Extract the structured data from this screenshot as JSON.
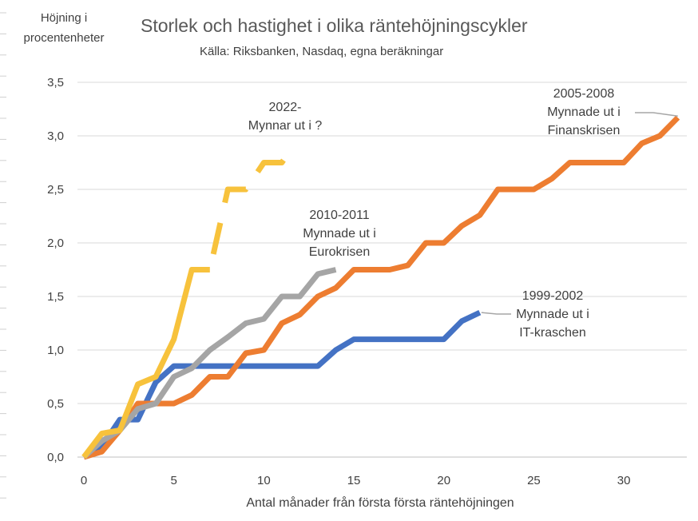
{
  "chart_data": {
    "type": "line",
    "title": "Storlek och hastighet i olika räntehöjningscykler",
    "subtitle": "Källa: Riksbanken, Nasdaq, egna beräkningar",
    "ylabel": [
      "Höjning i",
      "procentenheter"
    ],
    "xlabel": "Antal månader från första första räntehöjningen",
    "xlim": [
      0,
      33.5
    ],
    "ylim": [
      0,
      3.5
    ],
    "xticks": [
      0,
      5,
      10,
      15,
      20,
      25,
      30
    ],
    "xtick_labels": [
      "0",
      "5",
      "10",
      "15",
      "20",
      "25",
      "30"
    ],
    "yticks": [
      0,
      0.5,
      1,
      1.5,
      2,
      2.5,
      3,
      3.5
    ],
    "ytick_labels": [
      "0,0",
      "0,5",
      "1,0",
      "1,5",
      "2,0",
      "2,5",
      "3,0",
      "3,5"
    ],
    "grid": "horizontal",
    "series": [
      {
        "color": "#4472c4",
        "label": [
          "1999-2002",
          "Mynnade ut i",
          "IT-kraschen"
        ],
        "x": [
          0,
          1,
          2,
          2.5,
          3,
          4,
          5,
          6,
          7,
          8,
          9,
          10,
          11,
          12,
          13,
          14,
          15,
          16,
          17,
          18,
          19,
          20,
          21,
          22
        ],
        "y": [
          0,
          0.1,
          0.35,
          0.35,
          0.35,
          0.7,
          0.85,
          0.85,
          0.85,
          0.85,
          0.85,
          0.85,
          0.85,
          0.85,
          0.85,
          1.0,
          1.1,
          1.1,
          1.1,
          1.1,
          1.1,
          1.1,
          1.27,
          1.35
        ]
      },
      {
        "color": "#ed7d31",
        "label": [
          "2005-2008",
          "Mynnade ut i",
          "Finanskrisen"
        ],
        "x": [
          0,
          1,
          2,
          3,
          4,
          5,
          6,
          7,
          8,
          9,
          10,
          11,
          12,
          13,
          14,
          15,
          16,
          17,
          18,
          19,
          20,
          21,
          22,
          23,
          24,
          25,
          26,
          27,
          28,
          29,
          30,
          31,
          32,
          33
        ],
        "y": [
          0,
          0.05,
          0.25,
          0.5,
          0.5,
          0.5,
          0.58,
          0.75,
          0.75,
          0.97,
          1.0,
          1.25,
          1.33,
          1.5,
          1.58,
          1.75,
          1.75,
          1.75,
          1.79,
          2.0,
          2.0,
          2.16,
          2.26,
          2.5,
          2.5,
          2.5,
          2.6,
          2.75,
          2.75,
          2.75,
          2.75,
          2.93,
          3.0,
          3.17
        ]
      },
      {
        "color": "#a5a5a5",
        "label": [
          "2010-2011",
          "Mynnade ut i",
          "Eurokrisen"
        ],
        "x": [
          0,
          1,
          2,
          3,
          4,
          5,
          6,
          7,
          8,
          9,
          10,
          11,
          12,
          13,
          14
        ],
        "y": [
          0,
          0.15,
          0.25,
          0.45,
          0.5,
          0.75,
          0.83,
          1.0,
          1.12,
          1.25,
          1.29,
          1.5,
          1.5,
          1.71,
          1.75
        ]
      },
      {
        "color": "#f7c23c",
        "label": [
          "2022-",
          "Mynnar ut i ?"
        ],
        "x": [
          0,
          1,
          2,
          3,
          4,
          5,
          6,
          7,
          8,
          9,
          10,
          11,
          11.7
        ],
        "y": [
          0,
          0.22,
          0.25,
          0.68,
          0.75,
          1.1,
          1.75,
          1.75,
          2.5,
          2.5,
          2.75,
          2.75,
          2.92
        ]
      }
    ]
  }
}
